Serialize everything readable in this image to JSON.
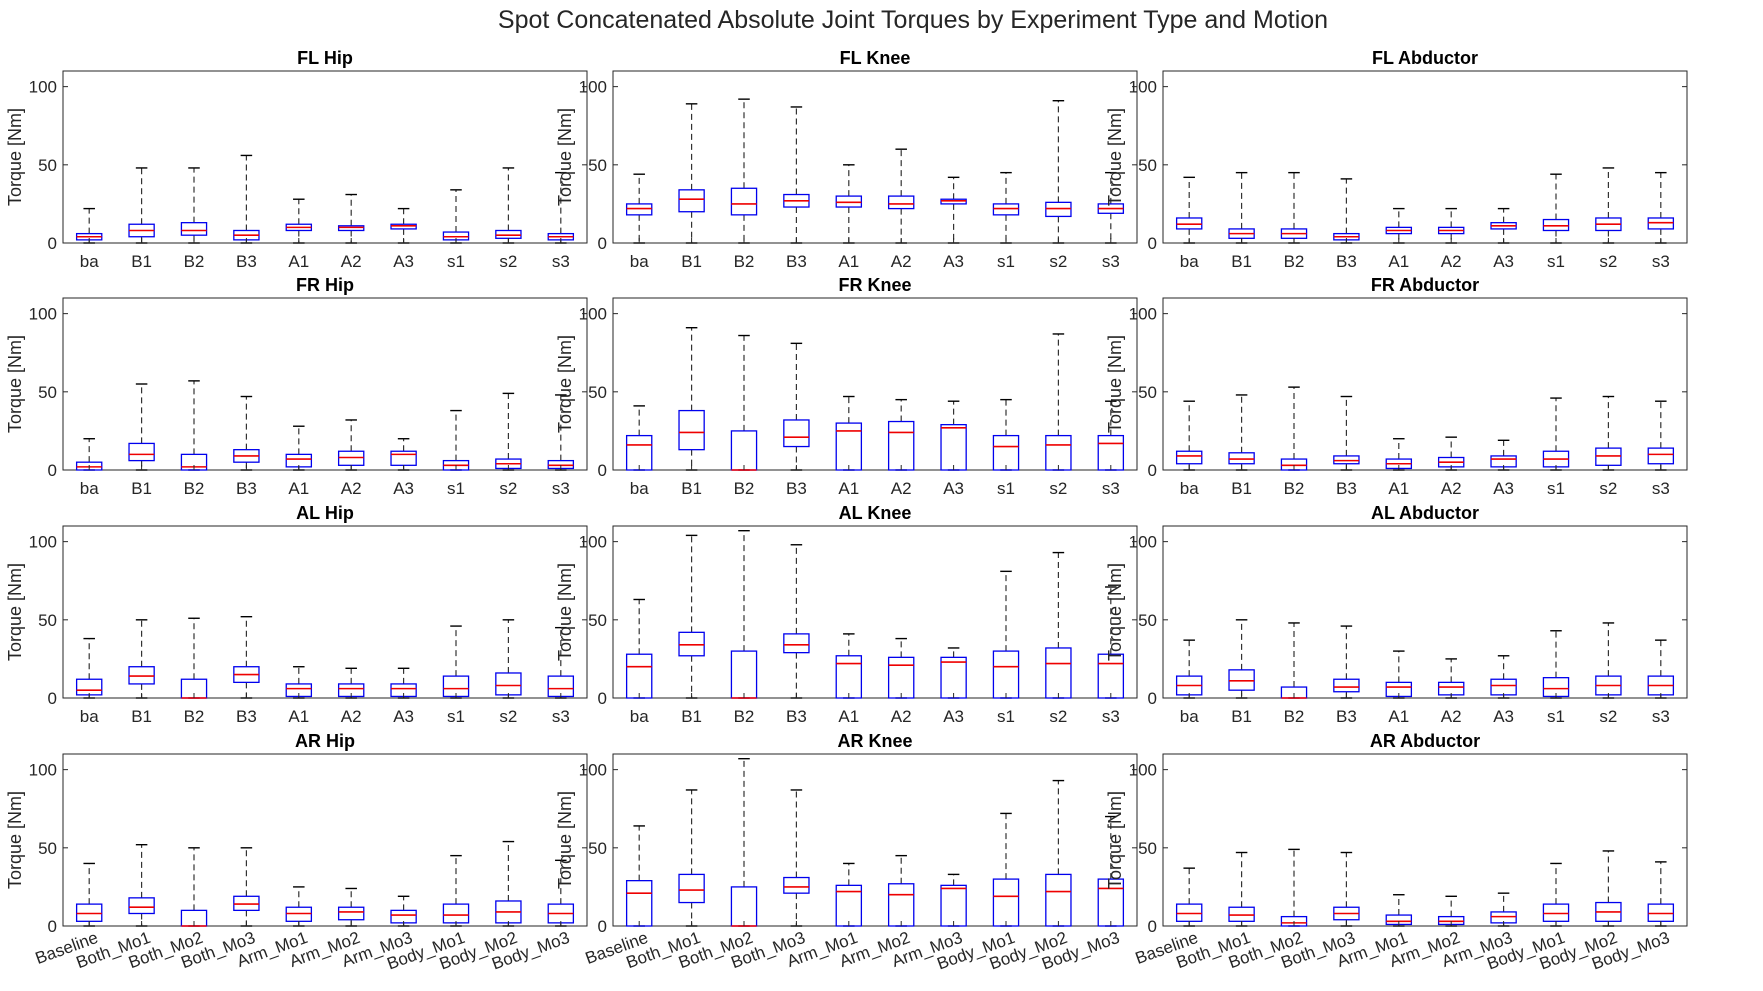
{
  "figure": {
    "title": "Spot Concatenated Absolute Joint Torques by Experiment Type and Motion"
  },
  "chart_data": {
    "type": "box",
    "ylabel": "Torque [Nm]",
    "ylim": [
      0,
      110
    ],
    "yticks": [
      0,
      50,
      100
    ],
    "grid": false,
    "short_labels": [
      "ba",
      "B1",
      "B2",
      "B3",
      "A1",
      "A2",
      "A3",
      "s1",
      "s2",
      "s3"
    ],
    "long_labels": [
      "Baseline",
      "Both_Mo1",
      "Both_Mo2",
      "Both_Mo3",
      "Arm_Mo1",
      "Arm_Mo2",
      "Arm_Mo3",
      "Body_Mo1",
      "Body_Mo2",
      "Body_Mo3"
    ],
    "stats_order": [
      "whisker_low",
      "q1",
      "median",
      "q3",
      "whisker_high"
    ],
    "colors": {
      "box": "#0000ee",
      "median": "#ee0000",
      "whisker": "#333333"
    },
    "panels": [
      {
        "title": "FL Hip",
        "boxes": [
          [
            0,
            2,
            4,
            6,
            22
          ],
          [
            0,
            4,
            8,
            12,
            48
          ],
          [
            0,
            5,
            8,
            13,
            48
          ],
          [
            0,
            2,
            5,
            8,
            56
          ],
          [
            0,
            8,
            10,
            12,
            28
          ],
          [
            0,
            8,
            10,
            11,
            31
          ],
          [
            0,
            9,
            11,
            12,
            22
          ],
          [
            0,
            2,
            4,
            7,
            34
          ],
          [
            0,
            3,
            5,
            8,
            48
          ],
          [
            0,
            2,
            4,
            6,
            45
          ]
        ]
      },
      {
        "title": "FL Knee",
        "boxes": [
          [
            0,
            18,
            22,
            25,
            44
          ],
          [
            0,
            20,
            28,
            34,
            89
          ],
          [
            0,
            18,
            25,
            35,
            92
          ],
          [
            0,
            23,
            27,
            31,
            87
          ],
          [
            0,
            23,
            26,
            30,
            50
          ],
          [
            0,
            22,
            25,
            30,
            60
          ],
          [
            0,
            25,
            27,
            28,
            42
          ],
          [
            0,
            18,
            22,
            25,
            45
          ],
          [
            0,
            17,
            22,
            26,
            91
          ],
          [
            0,
            19,
            22,
            25,
            45
          ]
        ]
      },
      {
        "title": "FL Abductor",
        "boxes": [
          [
            0,
            9,
            12,
            16,
            42
          ],
          [
            0,
            3,
            6,
            9,
            45
          ],
          [
            0,
            3,
            6,
            9,
            45
          ],
          [
            0,
            2,
            4,
            6,
            41
          ],
          [
            0,
            6,
            8,
            10,
            22
          ],
          [
            0,
            6,
            8,
            10,
            22
          ],
          [
            0,
            9,
            11,
            13,
            22
          ],
          [
            0,
            8,
            11,
            15,
            44
          ],
          [
            0,
            8,
            12,
            16,
            48
          ],
          [
            0,
            9,
            13,
            16,
            45
          ]
        ]
      },
      {
        "title": "FR Hip",
        "boxes": [
          [
            0,
            0,
            2,
            5,
            20
          ],
          [
            0,
            6,
            10,
            17,
            55
          ],
          [
            0,
            0,
            2,
            10,
            57
          ],
          [
            0,
            5,
            9,
            13,
            47
          ],
          [
            0,
            2,
            7,
            10,
            28
          ],
          [
            0,
            3,
            8,
            12,
            32
          ],
          [
            0,
            3,
            10,
            12,
            20
          ],
          [
            0,
            0,
            3,
            6,
            38
          ],
          [
            0,
            1,
            4,
            7,
            49
          ],
          [
            0,
            1,
            3,
            6,
            48
          ]
        ]
      },
      {
        "title": "FR Knee",
        "boxes": [
          [
            0,
            0,
            16,
            22,
            41
          ],
          [
            0,
            13,
            24,
            38,
            91
          ],
          [
            0,
            0,
            0,
            25,
            86
          ],
          [
            0,
            15,
            21,
            32,
            81
          ],
          [
            0,
            0,
            25,
            30,
            47
          ],
          [
            0,
            0,
            24,
            31,
            45
          ],
          [
            0,
            0,
            27,
            29,
            44
          ],
          [
            0,
            0,
            15,
            22,
            45
          ],
          [
            0,
            0,
            16,
            22,
            87
          ],
          [
            0,
            0,
            17,
            22,
            44
          ]
        ]
      },
      {
        "title": "FR Abductor",
        "boxes": [
          [
            0,
            4,
            9,
            12,
            44
          ],
          [
            0,
            4,
            7,
            11,
            48
          ],
          [
            0,
            0,
            3,
            7,
            53
          ],
          [
            0,
            4,
            6,
            9,
            47
          ],
          [
            0,
            1,
            4,
            7,
            20
          ],
          [
            0,
            2,
            5,
            8,
            21
          ],
          [
            0,
            2,
            7,
            9,
            19
          ],
          [
            0,
            2,
            7,
            12,
            46
          ],
          [
            0,
            3,
            9,
            14,
            47
          ],
          [
            0,
            4,
            10,
            14,
            44
          ]
        ]
      },
      {
        "title": "AL Hip",
        "boxes": [
          [
            0,
            2,
            5,
            12,
            38
          ],
          [
            0,
            9,
            14,
            20,
            50
          ],
          [
            0,
            0,
            0,
            12,
            51
          ],
          [
            0,
            10,
            15,
            20,
            52
          ],
          [
            0,
            1,
            6,
            9,
            20
          ],
          [
            0,
            1,
            6,
            9,
            19
          ],
          [
            0,
            1,
            6,
            9,
            19
          ],
          [
            0,
            1,
            6,
            14,
            46
          ],
          [
            0,
            2,
            8,
            16,
            50
          ],
          [
            0,
            1,
            6,
            14,
            45
          ]
        ]
      },
      {
        "title": "AL Knee",
        "boxes": [
          [
            0,
            0,
            20,
            28,
            63
          ],
          [
            0,
            27,
            34,
            42,
            104
          ],
          [
            0,
            0,
            0,
            30,
            107
          ],
          [
            0,
            29,
            34,
            41,
            98
          ],
          [
            0,
            0,
            22,
            27,
            41
          ],
          [
            0,
            0,
            21,
            26,
            38
          ],
          [
            0,
            0,
            23,
            26,
            32
          ],
          [
            0,
            0,
            20,
            30,
            81
          ],
          [
            0,
            0,
            22,
            32,
            93
          ],
          [
            0,
            0,
            22,
            28,
            71
          ]
        ]
      },
      {
        "title": "AL Abductor",
        "boxes": [
          [
            0,
            2,
            8,
            14,
            37
          ],
          [
            0,
            5,
            11,
            18,
            50
          ],
          [
            0,
            0,
            0,
            7,
            48
          ],
          [
            0,
            4,
            7,
            12,
            46
          ],
          [
            0,
            1,
            7,
            10,
            30
          ],
          [
            0,
            2,
            7,
            10,
            25
          ],
          [
            0,
            2,
            8,
            12,
            27
          ],
          [
            0,
            1,
            6,
            13,
            43
          ],
          [
            0,
            2,
            8,
            14,
            48
          ],
          [
            0,
            2,
            8,
            14,
            37
          ]
        ]
      },
      {
        "title": "AR Hip",
        "boxes": [
          [
            0,
            3,
            8,
            14,
            40
          ],
          [
            0,
            8,
            12,
            18,
            52
          ],
          [
            0,
            0,
            0,
            10,
            50
          ],
          [
            0,
            10,
            14,
            19,
            50
          ],
          [
            0,
            3,
            8,
            12,
            25
          ],
          [
            0,
            4,
            9,
            12,
            24
          ],
          [
            0,
            2,
            7,
            10,
            19
          ],
          [
            0,
            2,
            7,
            14,
            45
          ],
          [
            0,
            2,
            9,
            16,
            54
          ],
          [
            0,
            2,
            8,
            14,
            42
          ]
        ]
      },
      {
        "title": "AR Knee",
        "boxes": [
          [
            0,
            0,
            21,
            29,
            64
          ],
          [
            0,
            15,
            23,
            33,
            87
          ],
          [
            0,
            0,
            0,
            25,
            107
          ],
          [
            0,
            21,
            25,
            31,
            87
          ],
          [
            0,
            0,
            22,
            26,
            40
          ],
          [
            0,
            0,
            20,
            27,
            45
          ],
          [
            0,
            0,
            24,
            26,
            33
          ],
          [
            0,
            0,
            19,
            30,
            72
          ],
          [
            0,
            0,
            22,
            33,
            93
          ],
          [
            0,
            0,
            24,
            30,
            70
          ]
        ]
      },
      {
        "title": "AR Abductor",
        "boxes": [
          [
            0,
            3,
            8,
            14,
            37
          ],
          [
            0,
            3,
            7,
            12,
            47
          ],
          [
            0,
            0,
            2,
            6,
            49
          ],
          [
            0,
            4,
            8,
            12,
            47
          ],
          [
            0,
            1,
            3,
            7,
            20
          ],
          [
            0,
            1,
            3,
            6,
            19
          ],
          [
            0,
            2,
            6,
            9,
            21
          ],
          [
            0,
            3,
            8,
            14,
            40
          ],
          [
            0,
            3,
            9,
            15,
            48
          ],
          [
            0,
            3,
            8,
            14,
            41
          ]
        ]
      }
    ]
  }
}
